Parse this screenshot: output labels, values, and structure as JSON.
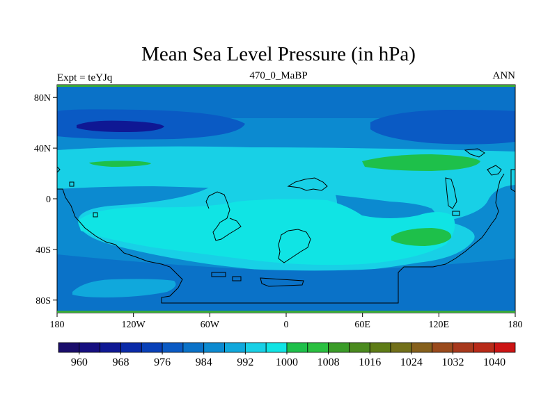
{
  "chart_data": {
    "type": "heatmap",
    "title": "Mean Sea Level Pressure (in hPa)",
    "subtitle_left": "Expt = teYJq",
    "subtitle_center": "470_0_MaBP",
    "subtitle_right": "ANN",
    "x_ticks": [
      "180",
      "120W",
      "60W",
      "0",
      "60E",
      "120E",
      "180"
    ],
    "x_tick_values": [
      -180,
      -120,
      -60,
      0,
      60,
      120,
      180
    ],
    "y_ticks": [
      "80N",
      "40N",
      "0",
      "40S",
      "80S"
    ],
    "y_tick_values": [
      80,
      40,
      0,
      -40,
      -80
    ],
    "xlim": [
      -180,
      180
    ],
    "ylim": [
      -90,
      90
    ],
    "colorbar": {
      "levels": [
        956,
        960,
        964,
        968,
        972,
        976,
        980,
        984,
        988,
        992,
        996,
        1000,
        1004,
        1008,
        1012,
        1016,
        1020,
        1024,
        1028,
        1032,
        1036,
        1040
      ],
      "labels": [
        "960",
        "968",
        "976",
        "984",
        "992",
        "1000",
        "1008",
        "1016",
        "1024",
        "1032",
        "1040"
      ],
      "colors": [
        "#1a0d6b",
        "#160f80",
        "#0f1894",
        "#0a2aa8",
        "#0840b8",
        "#0a5ac4",
        "#0a72c8",
        "#0c8ad0",
        "#10a8dc",
        "#18d0e6",
        "#10e4e4",
        "#1ec04a",
        "#2ac040",
        "#3a9c28",
        "#4a8a1e",
        "#5e7c16",
        "#72701a",
        "#86601c",
        "#9a4a1c",
        "#a8381c",
        "#b82a18",
        "#cc1414"
      ]
    },
    "fields": {
      "background_value": 986,
      "regions": [
        {
          "name": "polar-north-band",
          "value": 982
        },
        {
          "name": "north-low-west",
          "value": 976
        },
        {
          "name": "north-low-west-core",
          "value": 966
        },
        {
          "name": "north-low-east",
          "value": 976
        },
        {
          "name": "subtropical-high-belt",
          "value": 994
        },
        {
          "name": "subtropical-high-north-west",
          "value": 1002
        },
        {
          "name": "subtropical-high-north-east",
          "value": 1002
        },
        {
          "name": "southern-high",
          "value": 996
        },
        {
          "name": "southern-high-east-core",
          "value": 1002
        },
        {
          "name": "south-low-band",
          "value": 982
        },
        {
          "name": "antarctic-high",
          "value": 990
        }
      ]
    }
  },
  "colors": {
    "frame_green": "#3aa83a",
    "coastline": "#000000"
  }
}
